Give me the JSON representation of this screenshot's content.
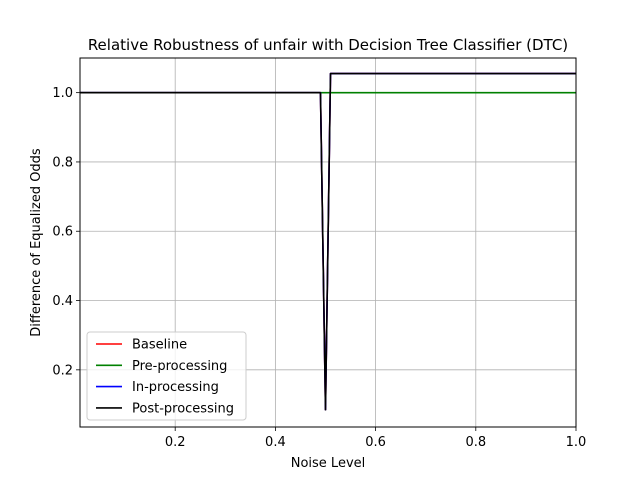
{
  "chart_data": {
    "type": "line",
    "title": "Relative Robustness of unfair with Decision Tree Classifier (DTC)",
    "xlabel": "Noise Level",
    "ylabel": "Difference of Equalized Odds",
    "xlim": [
      0.01,
      1.0
    ],
    "ylim": [
      0.035,
      1.1
    ],
    "xticks": [
      0.2,
      0.4,
      0.6,
      0.8,
      1.0
    ],
    "xtick_labels": [
      "0.2",
      "0.4",
      "0.6",
      "0.8",
      "1.0"
    ],
    "yticks": [
      0.2,
      0.4,
      0.6,
      0.8,
      1.0
    ],
    "ytick_labels": [
      "0.2",
      "0.4",
      "0.6",
      "0.8",
      "1.0"
    ],
    "grid": true,
    "legend_position": "lower-left",
    "series": [
      {
        "name": "Baseline",
        "color": "#ff0000",
        "x": [
          0.01,
          0.49,
          0.5,
          0.51,
          0.52,
          1.0
        ],
        "y": [
          1.0,
          1.0,
          0.085,
          1.055,
          1.055,
          1.055
        ]
      },
      {
        "name": "Pre-processing",
        "color": "#008000",
        "x": [
          0.01,
          1.0
        ],
        "y": [
          1.0,
          1.0
        ]
      },
      {
        "name": "In-processing",
        "color": "#0000ff",
        "x": [
          0.01,
          0.49,
          0.5,
          0.51,
          0.52,
          1.0
        ],
        "y": [
          1.0,
          1.0,
          0.085,
          1.055,
          1.055,
          1.055
        ]
      },
      {
        "name": "Post-processing",
        "color": "#000000",
        "x": [
          0.01,
          0.49,
          0.5,
          0.51,
          0.52,
          1.0
        ],
        "y": [
          1.0,
          1.0,
          0.085,
          1.055,
          1.055,
          1.055
        ]
      }
    ]
  }
}
